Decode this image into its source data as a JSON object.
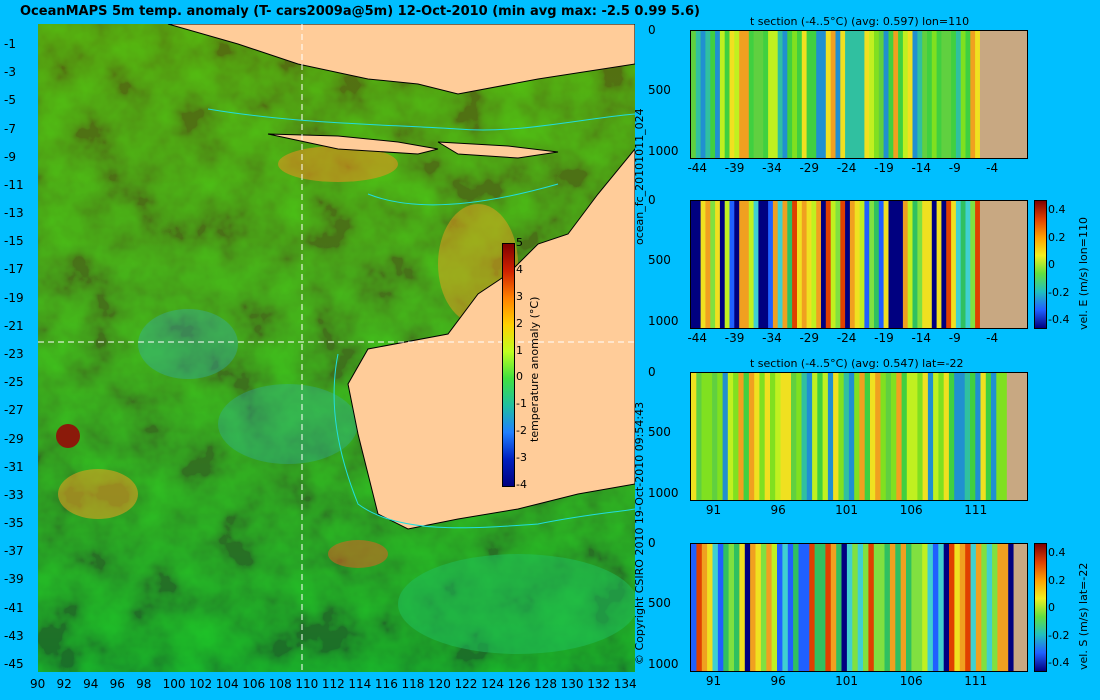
{
  "title": "OceanMAPS 5m temp. anomaly (T- cars2009a@5m) 12-Oct-2010 (min avg max: -2.5 0.99 5.6)",
  "map": {
    "x_ticks": [
      "90",
      "92",
      "94",
      "96",
      "98",
      "100",
      "102",
      "104",
      "106",
      "108",
      "110",
      "112",
      "114",
      "116",
      "118",
      "120",
      "122",
      "124",
      "126",
      "128",
      "130",
      "132",
      "134"
    ],
    "y_ticks": [
      "-1",
      "-3",
      "-5",
      "-7",
      "-9",
      "-11",
      "-13",
      "-15",
      "-17",
      "-19",
      "-21",
      "-23",
      "-25",
      "-27",
      "-29",
      "-31",
      "-33",
      "-35",
      "-37",
      "-39",
      "-41",
      "-43",
      "-45"
    ],
    "colorbar": {
      "label": "temperature anomaly (°C)",
      "ticks": [
        "5",
        "4",
        "3",
        "2",
        "1",
        "0",
        "-1",
        "-2",
        "-3",
        "-4"
      ],
      "min": -4,
      "max": 5
    },
    "section_lon": 110,
    "section_lat": -22
  },
  "copyright": "© Copyright CSIRO 2010   19-Oct-2010 09:54:43",
  "run_id": "ocean_fc_20101011_024",
  "panels": [
    {
      "id": "p1",
      "title": "t section (-4..5°C) (avg: 0.597) lon=110",
      "y_ticks": [
        "0",
        "500",
        "1000"
      ],
      "x_ticks": [
        "-44",
        "-39",
        "-34",
        "-29",
        "-24",
        "-19",
        "-14",
        "-9",
        "-4"
      ]
    },
    {
      "id": "p2",
      "title": "",
      "y_ticks": [
        "0",
        "500",
        "1000"
      ],
      "x_ticks": [
        "-44",
        "-39",
        "-34",
        "-29",
        "-24",
        "-19",
        "-14",
        "-9",
        "-4"
      ]
    },
    {
      "id": "p3",
      "title": "t section (-4..5°C) (avg: 0.547) lat=-22",
      "y_ticks": [
        "0",
        "500",
        "1000"
      ],
      "x_ticks": [
        "91",
        "96",
        "101",
        "106",
        "111"
      ]
    },
    {
      "id": "p4",
      "title": "",
      "y_ticks": [
        "0",
        "500",
        "1000"
      ],
      "x_ticks": [
        "91",
        "96",
        "101",
        "106",
        "111"
      ]
    }
  ],
  "vel_colorbars": [
    {
      "label": "vel. E (m/s) lon=110",
      "ticks": [
        "0.4",
        "0.2",
        "0",
        "-0.2",
        "-0.4"
      ]
    },
    {
      "label": "vel. S (m/s) lat=-22",
      "ticks": [
        "0.4",
        "0.2",
        "0",
        "-0.2",
        "-0.4"
      ]
    }
  ],
  "colors": {
    "background": "#00bfff",
    "land_map": "#ffcc99",
    "land_section": "#c8a882",
    "contour": "#22dddd"
  },
  "chart_data": [
    {
      "type": "heatmap",
      "title": "OceanMAPS 5m temp. anomaly (T- cars2009a@5m) 12-Oct-2010 (min avg max: -2.5 0.99 5.6)",
      "xlim": [
        90,
        135
      ],
      "ylim": [
        -45,
        0
      ],
      "zlim": [
        -4,
        5
      ],
      "min": -2.5,
      "avg": 0.99,
      "max": 5.6
    },
    {
      "type": "heatmap",
      "title": "t section (-4..5°C) (avg: 0.597) lon=110",
      "xlim": [
        -45,
        0
      ],
      "ylim": [
        1050,
        0
      ],
      "zlim": [
        -4,
        5
      ],
      "avg": 0.597
    },
    {
      "type": "heatmap",
      "title": "",
      "xlim": [
        -45,
        0
      ],
      "ylim": [
        1050,
        0
      ],
      "zlim": [
        -0.4,
        0.4
      ]
    },
    {
      "type": "heatmap",
      "title": "t section (-4..5°C) (avg: 0.547) lat=-22",
      "xlim": [
        89,
        115
      ],
      "ylim": [
        1050,
        0
      ],
      "zlim": [
        -4,
        5
      ],
      "avg": 0.547
    },
    {
      "type": "heatmap",
      "title": "",
      "xlim": [
        89,
        115
      ],
      "ylim": [
        1050,
        0
      ],
      "zlim": [
        -0.4,
        0.4
      ]
    }
  ]
}
